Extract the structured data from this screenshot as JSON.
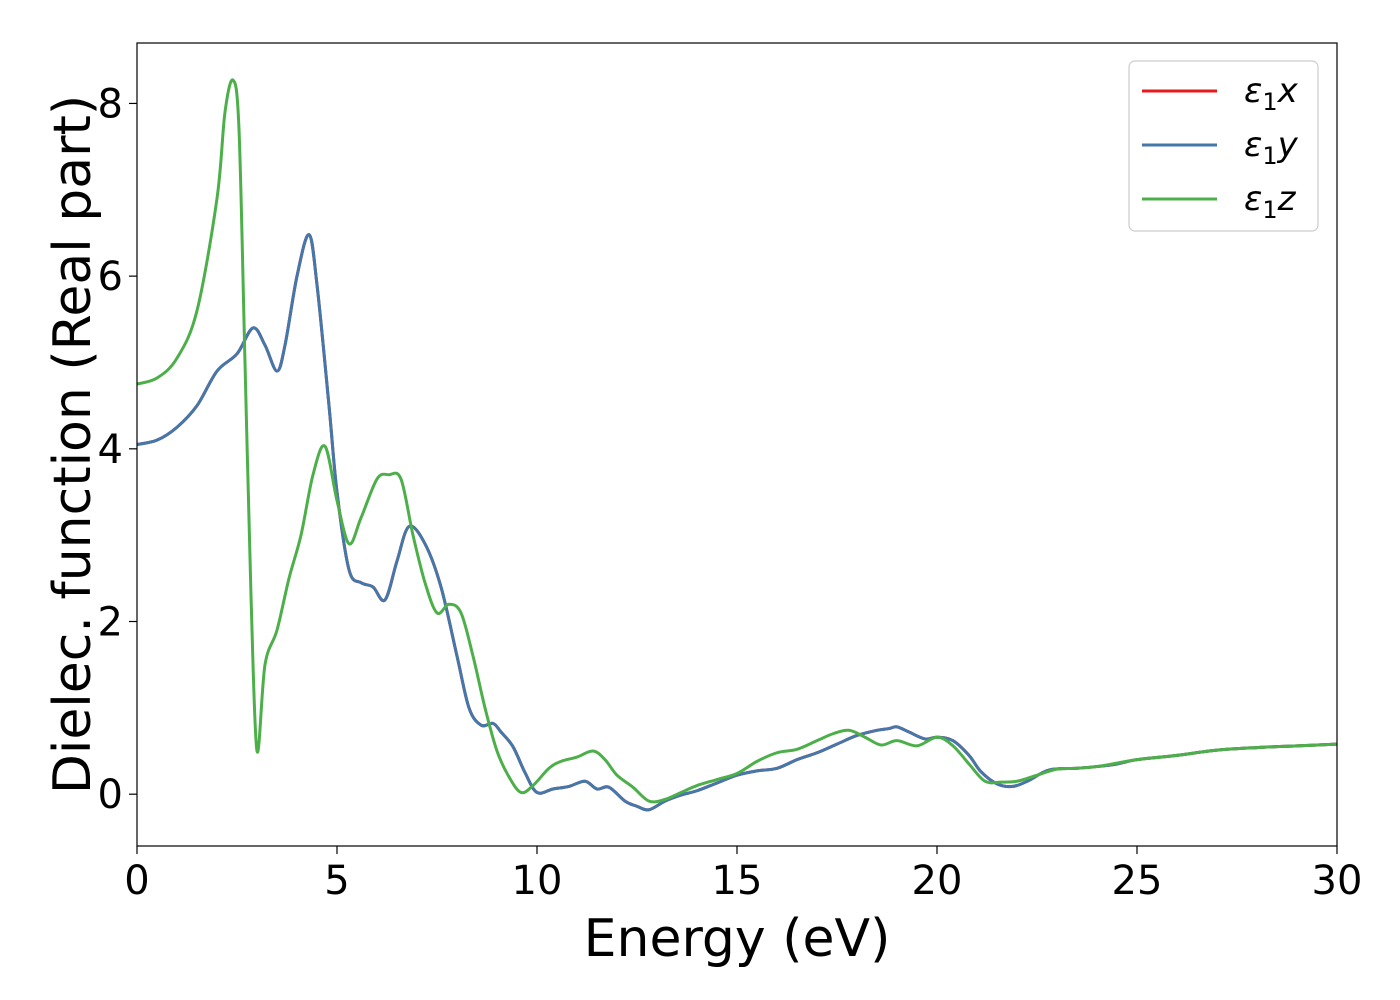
{
  "chart_data": {
    "type": "line",
    "title": "",
    "xlabel": "Energy (eV)",
    "ylabel": "Dielec. function (Real part)",
    "xlim": [
      0,
      30
    ],
    "ylim": [
      -0.6,
      8.7
    ],
    "xticks": [
      0,
      5,
      10,
      15,
      20,
      25,
      30
    ],
    "yticks": [
      0,
      2,
      4,
      6,
      8
    ],
    "grid": false,
    "legend_position": "top-right",
    "series": [
      {
        "name": "ε1x",
        "legend_base": "ε",
        "legend_sub": "1",
        "legend_suffix": "x",
        "color": "#e41a1c",
        "x": [
          0,
          0.5,
          1.0,
          1.5,
          2.0,
          2.5,
          2.9,
          3.2,
          3.5,
          3.7,
          4.0,
          4.3,
          4.5,
          4.8,
          5.0,
          5.3,
          5.6,
          5.9,
          6.2,
          6.5,
          6.8,
          7.2,
          7.6,
          8.0,
          8.3,
          8.6,
          8.9,
          9.1,
          9.4,
          9.7,
          10.0,
          10.4,
          10.8,
          11.2,
          11.5,
          11.8,
          12.2,
          12.5,
          12.8,
          13.2,
          13.6,
          14.0,
          14.5,
          15.0,
          15.5,
          16.0,
          16.5,
          17.0,
          17.5,
          18.0,
          18.5,
          18.8,
          19.0,
          19.3,
          19.7,
          20.0,
          20.4,
          20.8,
          21.1,
          21.5,
          21.9,
          22.3,
          22.8,
          23.5,
          24.0,
          24.5,
          25.0,
          26.0,
          27.0,
          28.0,
          29.0,
          30.0
        ],
        "y": [
          4.05,
          4.1,
          4.25,
          4.5,
          4.9,
          5.1,
          5.4,
          5.2,
          4.9,
          5.2,
          6.0,
          6.48,
          5.9,
          4.5,
          3.5,
          2.6,
          2.45,
          2.4,
          2.25,
          2.7,
          3.1,
          2.9,
          2.4,
          1.6,
          1.0,
          0.8,
          0.82,
          0.72,
          0.55,
          0.25,
          0.02,
          0.06,
          0.09,
          0.15,
          0.06,
          0.08,
          -0.08,
          -0.14,
          -0.18,
          -0.08,
          -0.01,
          0.04,
          0.13,
          0.22,
          0.27,
          0.3,
          0.4,
          0.48,
          0.58,
          0.68,
          0.74,
          0.76,
          0.78,
          0.72,
          0.64,
          0.66,
          0.62,
          0.45,
          0.26,
          0.12,
          0.09,
          0.16,
          0.28,
          0.3,
          0.32,
          0.35,
          0.4,
          0.45,
          0.51,
          0.54,
          0.56,
          0.58
        ]
      },
      {
        "name": "ε1y",
        "legend_base": "ε",
        "legend_sub": "1",
        "legend_suffix": "y",
        "color": "#4477aa",
        "x": [
          0,
          0.5,
          1.0,
          1.5,
          2.0,
          2.5,
          2.9,
          3.2,
          3.5,
          3.7,
          4.0,
          4.3,
          4.5,
          4.8,
          5.0,
          5.3,
          5.6,
          5.9,
          6.2,
          6.5,
          6.8,
          7.2,
          7.6,
          8.0,
          8.3,
          8.6,
          8.9,
          9.1,
          9.4,
          9.7,
          10.0,
          10.4,
          10.8,
          11.2,
          11.5,
          11.8,
          12.2,
          12.5,
          12.8,
          13.2,
          13.6,
          14.0,
          14.5,
          15.0,
          15.5,
          16.0,
          16.5,
          17.0,
          17.5,
          18.0,
          18.5,
          18.8,
          19.0,
          19.3,
          19.7,
          20.0,
          20.4,
          20.8,
          21.1,
          21.5,
          21.9,
          22.3,
          22.8,
          23.5,
          24.0,
          24.5,
          25.0,
          26.0,
          27.0,
          28.0,
          29.0,
          30.0
        ],
        "y": [
          4.05,
          4.1,
          4.25,
          4.5,
          4.9,
          5.1,
          5.4,
          5.2,
          4.9,
          5.2,
          6.0,
          6.48,
          5.9,
          4.5,
          3.5,
          2.6,
          2.45,
          2.4,
          2.25,
          2.7,
          3.1,
          2.9,
          2.4,
          1.6,
          1.0,
          0.8,
          0.82,
          0.72,
          0.55,
          0.25,
          0.02,
          0.06,
          0.09,
          0.15,
          0.06,
          0.08,
          -0.08,
          -0.14,
          -0.18,
          -0.08,
          -0.01,
          0.04,
          0.13,
          0.22,
          0.27,
          0.3,
          0.4,
          0.48,
          0.58,
          0.68,
          0.74,
          0.76,
          0.78,
          0.72,
          0.64,
          0.66,
          0.62,
          0.45,
          0.26,
          0.12,
          0.09,
          0.16,
          0.28,
          0.3,
          0.32,
          0.35,
          0.4,
          0.45,
          0.51,
          0.54,
          0.56,
          0.58
        ]
      },
      {
        "name": "ε1z",
        "legend_base": "ε",
        "legend_sub": "1",
        "legend_suffix": "z",
        "color": "#4daf4a",
        "x": [
          0,
          0.5,
          1.0,
          1.5,
          2.0,
          2.2,
          2.4,
          2.55,
          2.7,
          2.85,
          3.0,
          3.2,
          3.5,
          3.8,
          4.1,
          4.4,
          4.7,
          5.0,
          5.3,
          5.6,
          6.0,
          6.3,
          6.6,
          6.9,
          7.2,
          7.5,
          7.8,
          8.1,
          8.4,
          8.7,
          9.0,
          9.3,
          9.6,
          9.9,
          10.3,
          10.6,
          11.0,
          11.4,
          11.7,
          12.0,
          12.4,
          12.8,
          13.2,
          13.6,
          14.0,
          14.5,
          15.0,
          15.5,
          16.0,
          16.5,
          17.0,
          17.4,
          17.8,
          18.2,
          18.6,
          19.0,
          19.5,
          20.0,
          20.4,
          20.8,
          21.2,
          21.6,
          22.0,
          22.5,
          23.0,
          23.5,
          24.0,
          24.5,
          25.0,
          26.0,
          27.0,
          28.0,
          29.0,
          30.0
        ],
        "y": [
          4.75,
          4.82,
          5.05,
          5.6,
          6.9,
          7.9,
          8.27,
          7.7,
          5.0,
          2.3,
          0.5,
          1.5,
          1.9,
          2.5,
          3.0,
          3.7,
          4.03,
          3.4,
          2.9,
          3.2,
          3.65,
          3.7,
          3.65,
          3.0,
          2.45,
          2.1,
          2.2,
          2.1,
          1.6,
          1.0,
          0.5,
          0.2,
          0.02,
          0.1,
          0.3,
          0.38,
          0.43,
          0.5,
          0.4,
          0.22,
          0.08,
          -0.08,
          -0.06,
          0.02,
          0.1,
          0.17,
          0.24,
          0.38,
          0.48,
          0.52,
          0.62,
          0.7,
          0.74,
          0.66,
          0.57,
          0.62,
          0.56,
          0.66,
          0.56,
          0.35,
          0.15,
          0.14,
          0.15,
          0.22,
          0.29,
          0.3,
          0.32,
          0.36,
          0.4,
          0.45,
          0.51,
          0.54,
          0.56,
          0.58
        ]
      }
    ]
  }
}
